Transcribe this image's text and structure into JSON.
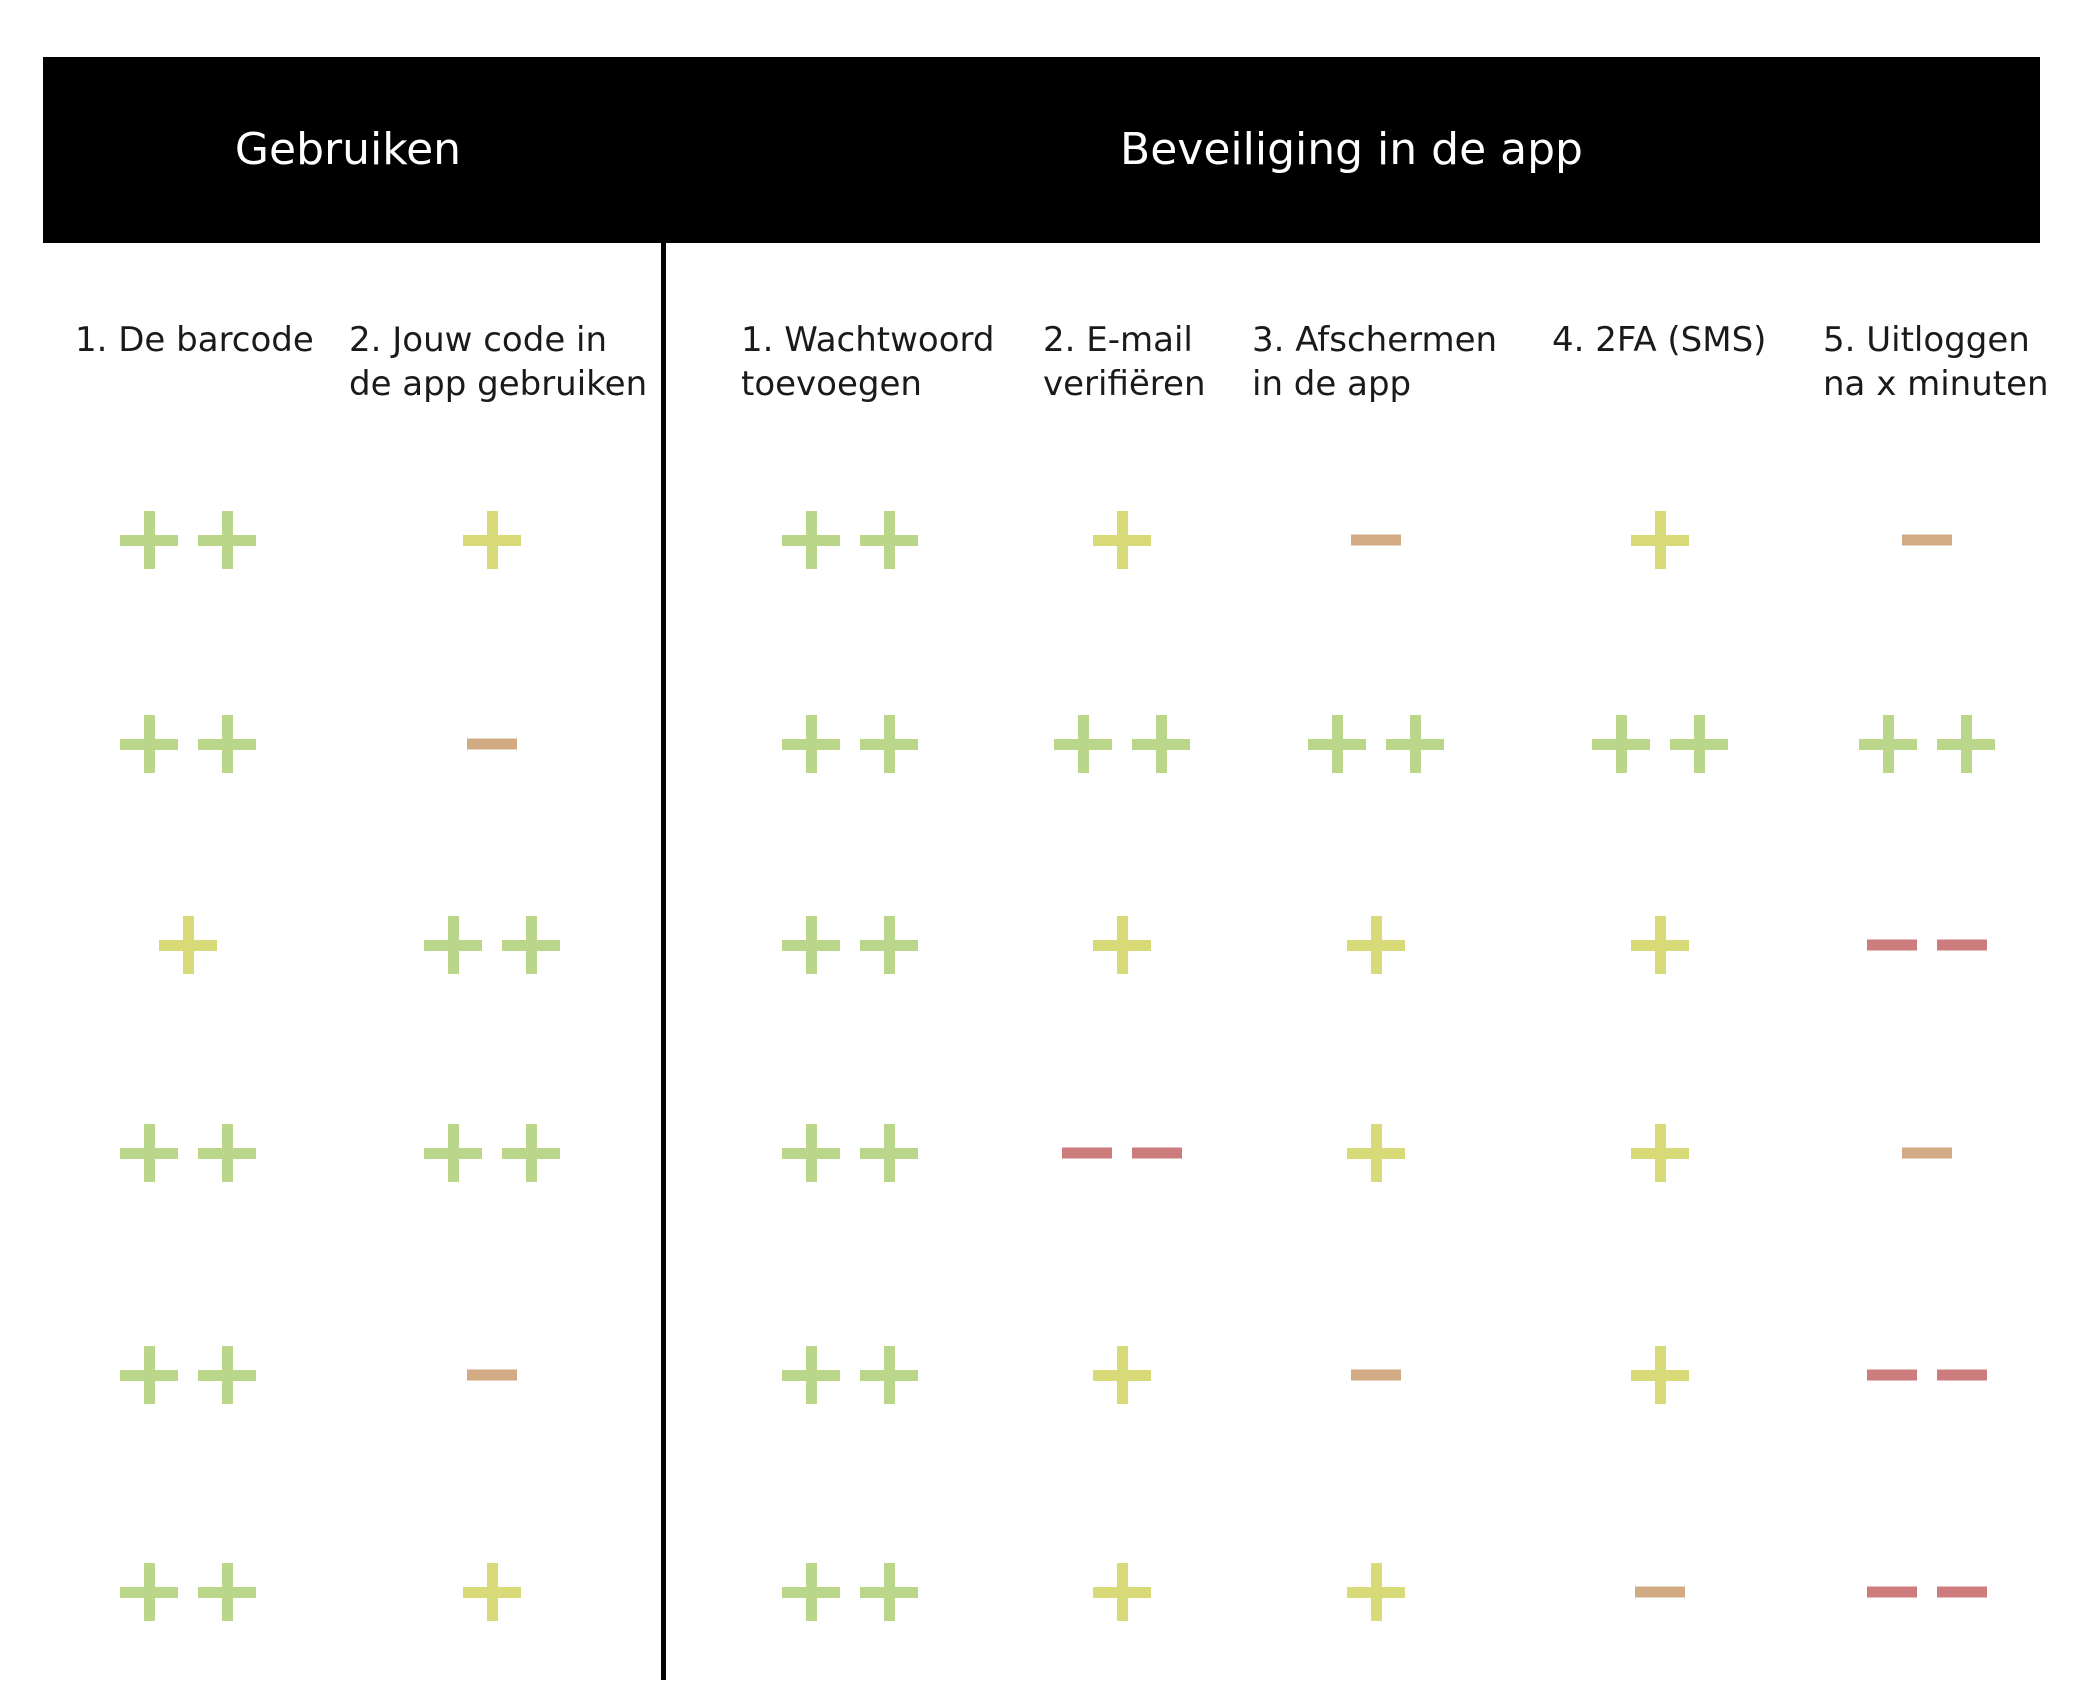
{
  "groups": {
    "use": "Gebruiken",
    "security": "Beveiliging in de app"
  },
  "columns": [
    "1. De barcode",
    "2. Jouw code in\nde app gebruiken",
    "1. Wachtwoord\ntoevoegen",
    "2. E-mail\nverifiëren",
    "3. Afschermen\nin de app",
    "4. 2FA (SMS)",
    "5. Uitloggen\nna x minuten"
  ],
  "colors": {
    "++": "#b9d68a",
    "+": "#d8d977",
    "-": "#d2aa83",
    "--": "#cc7c7c"
  },
  "ratings": [
    [
      "++",
      "+",
      "++",
      "+",
      "-",
      "+",
      "-"
    ],
    [
      "++",
      "-",
      "++",
      "++",
      "++",
      "++",
      "++"
    ],
    [
      "+",
      "++",
      "++",
      "+",
      "+",
      "+",
      "--"
    ],
    [
      "++",
      "++",
      "++",
      "--",
      "+",
      "+",
      "-"
    ],
    [
      "++",
      "-",
      "++",
      "+",
      "-",
      "+",
      "--"
    ],
    [
      "++",
      "+",
      "++",
      "+",
      "+",
      "-",
      "--"
    ]
  ]
}
